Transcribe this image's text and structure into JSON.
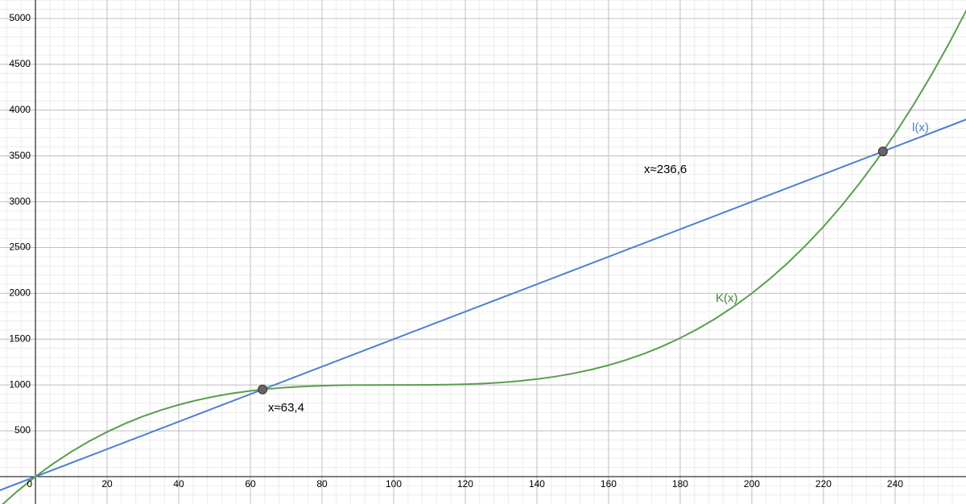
{
  "chart_data": {
    "type": "line",
    "xlim": [
      -9.9,
      259.8
    ],
    "ylim": [
      -299,
      5202
    ],
    "xticks": [
      0,
      20,
      40,
      60,
      80,
      100,
      120,
      140,
      160,
      180,
      200,
      220,
      240
    ],
    "yticks": [
      500,
      1000,
      1500,
      2000,
      2500,
      3000,
      3500,
      4000,
      4500,
      5000
    ],
    "grid": true,
    "minor_grid": true,
    "series": [
      {
        "name": "l(x)",
        "color": "#4f7fd4",
        "x": [
          -10,
          260
        ],
        "values": [
          -150,
          3900
        ]
      },
      {
        "name": "K(x)",
        "color": "#5a9e4f",
        "x": [
          -10,
          -5,
          0,
          5,
          10,
          15,
          20,
          25,
          30,
          35,
          40,
          45,
          50,
          55,
          60,
          65,
          70,
          75,
          80,
          85,
          90,
          95,
          100,
          105,
          110,
          115,
          120,
          125,
          130,
          135,
          140,
          145,
          150,
          155,
          160,
          165,
          170,
          175,
          180,
          185,
          190,
          195,
          200,
          205,
          210,
          215,
          220,
          225,
          230,
          235,
          240,
          245,
          250,
          255,
          260
        ],
        "values": [
          -331,
          -157.6,
          0,
          142.6,
          271,
          385.9,
          488,
          578.1,
          657,
          725.4,
          784,
          833.6,
          875,
          908.9,
          936,
          957.1,
          973,
          984.4,
          992,
          996.6,
          999,
          999.9,
          1000,
          1000.1,
          1001,
          1003.4,
          1008,
          1015.6,
          1027,
          1042.9,
          1064,
          1091.1,
          1125,
          1166.4,
          1216,
          1274.6,
          1343,
          1421.9,
          1512,
          1614.1,
          1729,
          1857.4,
          2000,
          2157.6,
          2331,
          2520.9,
          2728,
          2953.1,
          3197,
          3460.4,
          3744,
          4048.6,
          4375,
          4723.9,
          5096
        ]
      }
    ],
    "points": [
      {
        "x": 63.4,
        "y": 951,
        "label": "x≈63,4"
      },
      {
        "x": 236.6,
        "y": 3549,
        "label": "x≈236,6"
      }
    ]
  }
}
